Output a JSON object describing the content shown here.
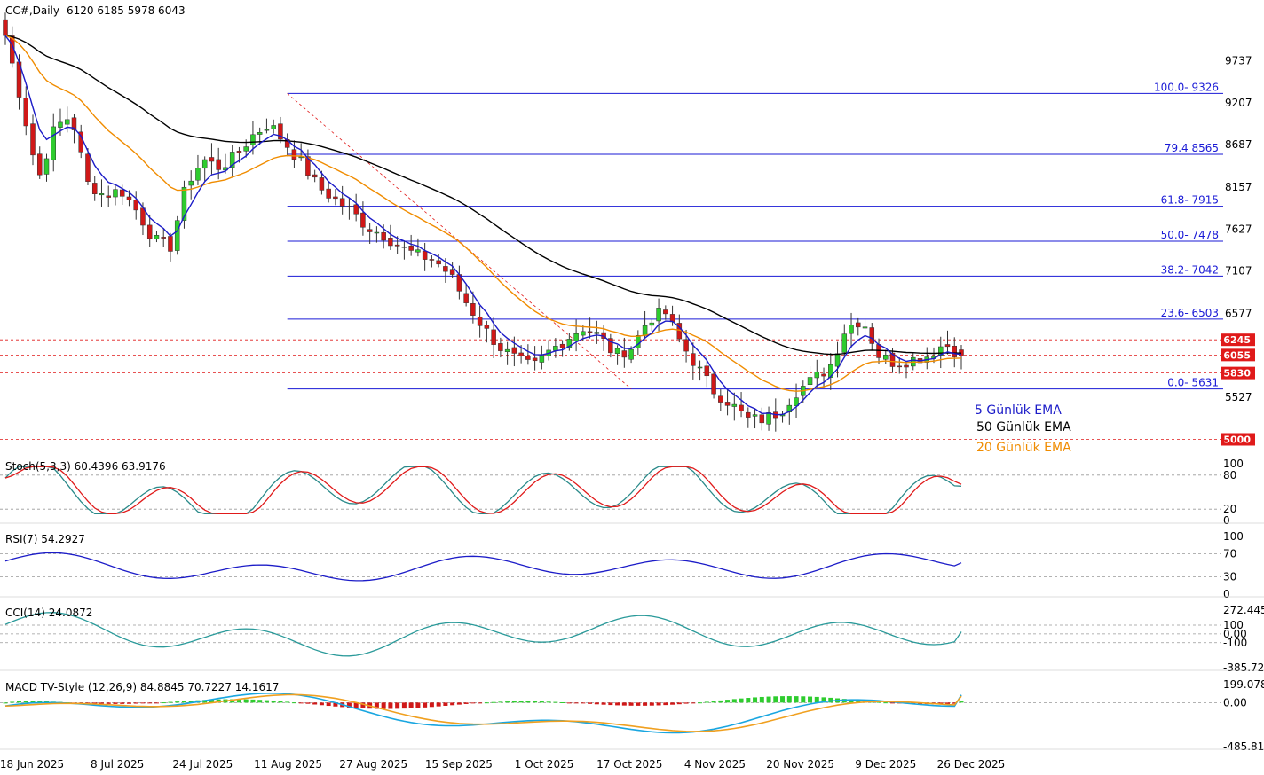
{
  "header": {
    "symbol": "CC#,Daily",
    "ohlc": "6120 6185 5978 6043"
  },
  "colors": {
    "up": "#2ecc2e",
    "down": "#d01818",
    "ema5": "#1c1cc8",
    "ema20": "#f08c00",
    "ema50": "#000000",
    "fib": "#1a1ad6",
    "level": "#e01a1a",
    "stoch_k": "#2a8a8a",
    "stoch_d": "#e01a1a",
    "rsi": "#1c1cc8",
    "cci": "#2a9a9a",
    "macd_line": "#19a6e0",
    "macd_signal": "#f0a020"
  },
  "chart_data": [
    {
      "type": "candlestick",
      "title": "CC#,Daily",
      "x_ticks": [
        "18 Jun 2025",
        "8 Jul 2025",
        "24 Jul 2025",
        "11 Aug 2025",
        "27 Aug 2025",
        "15 Sep 2025",
        "1 Oct 2025",
        "17 Oct 2025",
        "4 Nov 2025",
        "20 Nov 2025",
        "9 Dec 2025",
        "26 Dec 2025"
      ],
      "y_ticks": [
        "9737",
        "9207",
        "8687",
        "8157",
        "7627",
        "7107",
        "6577",
        "5527"
      ],
      "ylim": [
        4950,
        10250
      ],
      "last": {
        "open": 6120,
        "high": 6185,
        "low": 5978,
        "close": 6043
      },
      "close_path": [
        10050,
        9200,
        8250,
        8900,
        9050,
        8200,
        8050,
        8120,
        7850,
        7500,
        7400,
        8200,
        8500,
        8400,
        8550,
        8800,
        8950,
        8700,
        8450,
        8150,
        8000,
        7850,
        7650,
        7550,
        7400,
        7300,
        7250,
        7050,
        6700,
        6400,
        6150,
        6000,
        5900,
        6100,
        6250,
        6400,
        6300,
        6050,
        6150,
        6500,
        6600,
        6200,
        5900,
        5600,
        5450,
        5250,
        5250,
        5350,
        5600,
        5750,
        5900,
        6400,
        6500,
        6050,
        5950,
        6000,
        6050,
        6200,
        6043
      ],
      "series": [
        {
          "name": "5 Günlük EMA",
          "smoothing": 5
        },
        {
          "name": "20 Günlük EMA",
          "smoothing": 20
        },
        {
          "name": "50 Günlük EMA",
          "smoothing": 50
        }
      ],
      "fibonacci": [
        {
          "label": "100.0- 9326",
          "value": 9326
        },
        {
          "label": "79.4 8565",
          "value": 8565
        },
        {
          "label": "61.8- 7915",
          "value": 7915
        },
        {
          "label": "50.0- 7478",
          "value": 7478
        },
        {
          "label": "38.2- 7042",
          "value": 7042
        },
        {
          "label": "23.6- 6503",
          "value": 6503
        },
        {
          "label": "0.0- 5631",
          "value": 5631
        }
      ],
      "levels": [
        {
          "label": "6245",
          "value": 6245
        },
        {
          "label": "6055",
          "value": 6055
        },
        {
          "label": "5830",
          "value": 5830
        },
        {
          "label": "5000",
          "value": 5000
        }
      ],
      "legend": [
        "5 Günlük EMA",
        "50 Günlük EMA",
        "20 Günlük EMA"
      ]
    },
    {
      "type": "line",
      "title": "Stoch(5,3,3) 60.4396 63.9176",
      "ylim": [
        0,
        100
      ],
      "levels": [
        20,
        80
      ],
      "y_ticks": [
        "100",
        "80",
        "20",
        "0"
      ],
      "series": [
        {
          "k": 60.4396,
          "d": 63.9176
        }
      ]
    },
    {
      "type": "line",
      "title": "RSI(7) 54.2927",
      "ylim": [
        0,
        100
      ],
      "levels": [
        30,
        70
      ],
      "y_ticks": [
        "100",
        "70",
        "30",
        "0"
      ],
      "value": 54.2927
    },
    {
      "type": "line",
      "title": "CCI(14) 24.0872",
      "ylim": [
        -385.727,
        272.445
      ],
      "levels": [
        100,
        0,
        -100
      ],
      "y_ticks": [
        "272.445",
        "100",
        "0.00",
        "-100",
        "-385.727"
      ],
      "value": 24.0872
    },
    {
      "type": "bar",
      "title": "MACD TV-Style (12,26,9) 84.8845 70.7227 14.1617",
      "ylim": [
        -485.811,
        199.078
      ],
      "y_ticks": [
        "199.078",
        "0.00",
        "-485.811"
      ],
      "macd": 84.8845,
      "signal": 70.7227,
      "histogram": 14.1617
    }
  ]
}
